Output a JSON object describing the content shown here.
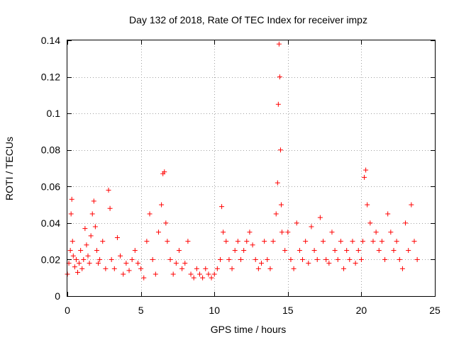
{
  "chart_data": {
    "type": "scatter",
    "title": "Day 132 of 2018, Rate Of TEC Index for receiver impz",
    "xlabel": "GPS time / hours",
    "ylabel": "ROTI / TECUs",
    "xlim": [
      0,
      25
    ],
    "ylim": [
      0,
      0.14
    ],
    "x_ticks": [
      0,
      5,
      10,
      15,
      20,
      25
    ],
    "x_tick_labels": [
      "0",
      "5",
      "10",
      "15",
      "20",
      "25"
    ],
    "y_ticks": [
      0,
      0.02,
      0.04,
      0.06,
      0.08,
      0.1,
      0.12,
      0.14
    ],
    "y_tick_labels": [
      "0",
      "0.02",
      "0.04",
      "0.06",
      "0.08",
      "0.1",
      "0.12",
      "0.14"
    ],
    "grid": true,
    "marker": "+",
    "series": [
      {
        "name": "ROTI",
        "color": "#ff0000",
        "x": [
          0.0,
          0.1,
          0.2,
          0.25,
          0.3,
          0.35,
          0.4,
          0.5,
          0.6,
          0.7,
          0.8,
          0.9,
          1.0,
          1.1,
          1.2,
          1.3,
          1.4,
          1.5,
          1.6,
          1.7,
          1.8,
          1.9,
          2.0,
          2.1,
          2.2,
          2.4,
          2.6,
          2.8,
          2.9,
          3.0,
          3.2,
          3.4,
          3.6,
          3.8,
          4.0,
          4.2,
          4.4,
          4.6,
          4.8,
          5.0,
          5.2,
          5.4,
          5.6,
          5.8,
          6.0,
          6.2,
          6.4,
          6.5,
          6.6,
          6.7,
          6.8,
          7.0,
          7.2,
          7.4,
          7.6,
          7.8,
          8.0,
          8.2,
          8.4,
          8.6,
          8.8,
          9.0,
          9.2,
          9.4,
          9.6,
          9.8,
          10.0,
          10.2,
          10.4,
          10.5,
          10.6,
          10.8,
          11.0,
          11.2,
          11.4,
          11.6,
          11.8,
          12.0,
          12.2,
          12.4,
          12.6,
          12.8,
          13.0,
          13.2,
          13.4,
          13.6,
          13.8,
          14.0,
          14.2,
          14.3,
          14.35,
          14.4,
          14.45,
          14.5,
          14.55,
          14.6,
          14.8,
          15.0,
          15.2,
          15.4,
          15.6,
          15.8,
          16.0,
          16.2,
          16.4,
          16.6,
          16.8,
          17.0,
          17.2,
          17.4,
          17.6,
          17.8,
          18.0,
          18.2,
          18.4,
          18.6,
          18.8,
          19.0,
          19.2,
          19.4,
          19.6,
          19.8,
          20.0,
          20.1,
          20.2,
          20.3,
          20.4,
          20.6,
          20.8,
          21.0,
          21.2,
          21.4,
          21.6,
          21.8,
          22.0,
          22.2,
          22.4,
          22.6,
          22.8,
          23.0,
          23.2,
          23.4,
          23.6,
          23.8
        ],
        "y": [
          0.012,
          0.018,
          0.025,
          0.045,
          0.053,
          0.03,
          0.022,
          0.016,
          0.02,
          0.013,
          0.018,
          0.025,
          0.015,
          0.02,
          0.037,
          0.028,
          0.022,
          0.018,
          0.033,
          0.045,
          0.052,
          0.038,
          0.025,
          0.018,
          0.02,
          0.03,
          0.015,
          0.058,
          0.048,
          0.02,
          0.015,
          0.032,
          0.022,
          0.012,
          0.018,
          0.014,
          0.02,
          0.025,
          0.018,
          0.015,
          0.01,
          0.03,
          0.045,
          0.02,
          0.012,
          0.035,
          0.05,
          0.067,
          0.068,
          0.04,
          0.03,
          0.02,
          0.012,
          0.018,
          0.025,
          0.015,
          0.018,
          0.03,
          0.012,
          0.01,
          0.015,
          0.012,
          0.01,
          0.015,
          0.012,
          0.01,
          0.012,
          0.015,
          0.02,
          0.049,
          0.035,
          0.03,
          0.02,
          0.015,
          0.025,
          0.03,
          0.02,
          0.025,
          0.03,
          0.035,
          0.028,
          0.02,
          0.015,
          0.018,
          0.03,
          0.02,
          0.015,
          0.03,
          0.045,
          0.062,
          0.105,
          0.138,
          0.12,
          0.08,
          0.05,
          0.035,
          0.025,
          0.035,
          0.02,
          0.015,
          0.04,
          0.025,
          0.02,
          0.03,
          0.018,
          0.038,
          0.025,
          0.02,
          0.043,
          0.03,
          0.02,
          0.018,
          0.035,
          0.025,
          0.02,
          0.03,
          0.015,
          0.025,
          0.02,
          0.03,
          0.018,
          0.025,
          0.02,
          0.03,
          0.065,
          0.069,
          0.05,
          0.04,
          0.03,
          0.035,
          0.025,
          0.03,
          0.02,
          0.045,
          0.035,
          0.025,
          0.03,
          0.02,
          0.015,
          0.04,
          0.025,
          0.05,
          0.03,
          0.02
        ]
      }
    ]
  }
}
